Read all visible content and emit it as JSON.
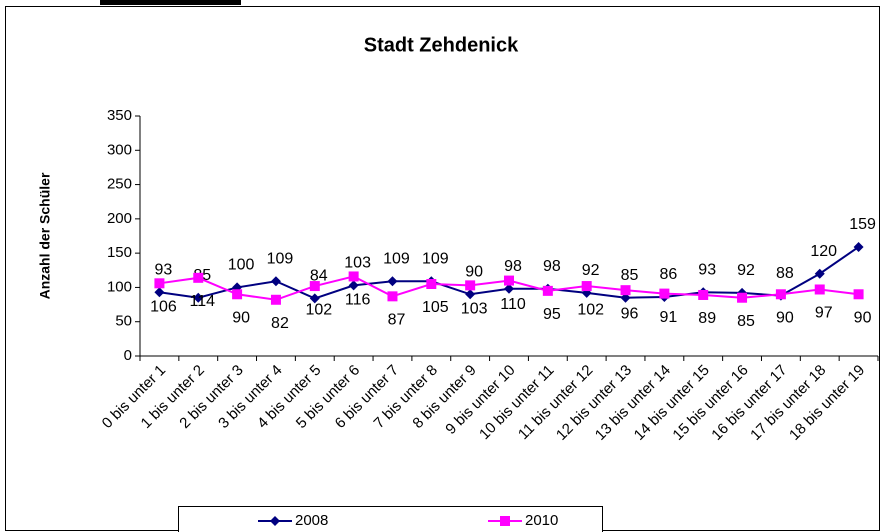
{
  "chart_data": {
    "type": "line",
    "title": "Stadt Zehdenick",
    "y_label": "Anzahl der Schüler",
    "categories": [
      "0 bis unter 1",
      "1 bis unter 2",
      "2 bis unter 3",
      "3 bis unter 4",
      "4 bis unter 5",
      "5 bis unter 6",
      "6 bis unter 7",
      "7 bis unter 8",
      "8 bis unter 9",
      "9 bis unter 10",
      "10 bis unter 11",
      "11 bis unter 12",
      "12 bis unter 13",
      "13 bis unter 14",
      "14 bis unter 15",
      "15 bis unter 16",
      "16 bis unter 17",
      "17 bis unter 18",
      "18 bis unter 19"
    ],
    "series": [
      {
        "name": "2008",
        "color": "#000080",
        "marker": "diamond",
        "values": [
          93,
          85,
          100,
          109,
          84,
          103,
          109,
          109,
          90,
          98,
          98,
          92,
          85,
          86,
          93,
          92,
          88,
          120,
          159
        ]
      },
      {
        "name": "2010",
        "color": "#ff00ff",
        "marker": "square",
        "values": [
          106,
          114,
          90,
          82,
          102,
          116,
          87,
          105,
          103,
          110,
          95,
          102,
          96,
          91,
          89,
          85,
          90,
          97,
          90
        ]
      }
    ],
    "ylim": [
      0,
      350
    ],
    "yticks": [
      0,
      50,
      100,
      150,
      200,
      250,
      300,
      350
    ],
    "grid": false,
    "legend": "bottom"
  }
}
